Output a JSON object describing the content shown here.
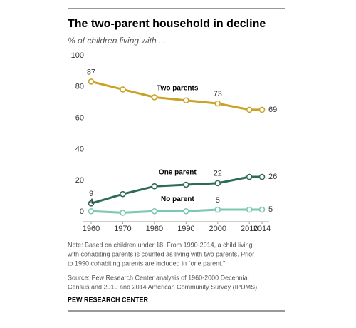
{
  "chart_data": {
    "type": "line",
    "title": "The two-parent household in decline",
    "subtitle": "% of children living with ...",
    "x": [
      1960,
      1970,
      1980,
      1990,
      2000,
      2010,
      2014
    ],
    "series": [
      {
        "name": "Two parents",
        "color": "#c9a227",
        "values": [
          87,
          82,
          77,
          75,
          73,
          69,
          69
        ],
        "value_labels": [
          "87",
          null,
          null,
          null,
          "73",
          null,
          "69"
        ]
      },
      {
        "name": "One parent",
        "color": "#2e6b55",
        "values": [
          9,
          15,
          20,
          21,
          22,
          26,
          26
        ],
        "value_labels": [
          "9",
          null,
          null,
          null,
          "22",
          null,
          "26"
        ]
      },
      {
        "name": "No parent",
        "color": "#7cc7b3",
        "values": [
          4,
          3,
          4,
          4,
          5,
          5,
          5
        ],
        "value_labels": [
          "4",
          null,
          null,
          null,
          "5",
          null,
          "5"
        ]
      }
    ],
    "xlim": [
      1960,
      2014
    ],
    "xticks": [
      1960,
      1970,
      1980,
      1990,
      2000,
      2010,
      2014
    ],
    "ylim": [
      0,
      100
    ],
    "yticks": [
      0,
      20,
      40,
      60,
      80,
      100
    ],
    "grid": false,
    "note": [
      "Note: Based on children under 18. From 1990-2014, a child living",
      "with cohabiting parents is counted as living with two parents. Prior",
      "to 1990 cohabiting parents are included in “one parent.”"
    ],
    "source": [
      "Source: Pew Research Center analysis of 1960-2000 Decennial",
      "Census and 2010 and 2014 American Community Survey (IPUMS)"
    ],
    "credit": "PEW RESEARCH CENTER"
  }
}
